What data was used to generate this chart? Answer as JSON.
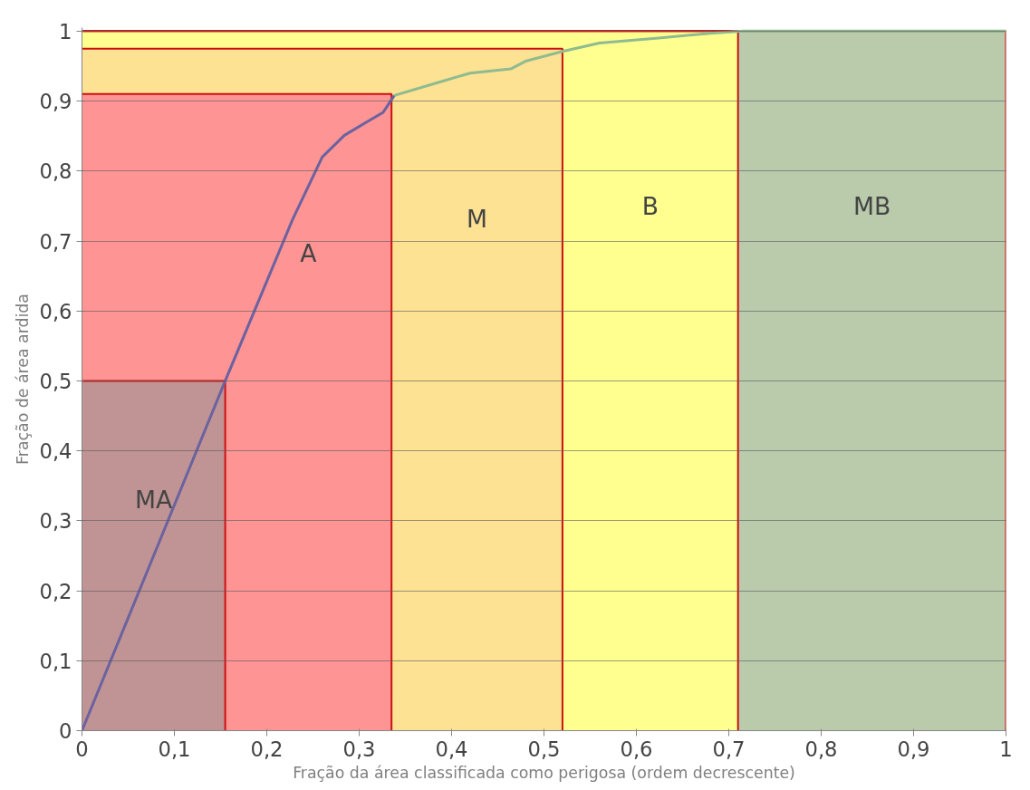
{
  "chart_data": {
    "type": "area",
    "stacked": true,
    "xlabel": "Fração da área classificada como perigosa (ordem decrescente)",
    "ylabel": "Fração de área ardida",
    "xlim": [
      0,
      1
    ],
    "ylim": [
      0,
      1.005
    ],
    "xticks": [
      0,
      {
        "value": 0.1,
        "label": "0,1"
      },
      {
        "value": 0.2,
        "label": "0,2"
      },
      {
        "value": 0.3,
        "label": "0,3"
      },
      {
        "value": 0.4,
        "label": "0,4"
      },
      {
        "value": 0.5,
        "label": "0,5"
      },
      {
        "value": 0.6,
        "label": "0,6"
      },
      {
        "value": 0.7,
        "label": "0,7"
      },
      {
        "value": 0.8,
        "label": "0,8"
      },
      {
        "value": 0.9,
        "label": "0,9"
      },
      1
    ],
    "yticks": [
      0,
      {
        "value": 0.1,
        "label": "0,1"
      },
      {
        "value": 0.2,
        "label": "0,2"
      },
      {
        "value": 0.3,
        "label": "0,3"
      },
      {
        "value": 0.4,
        "label": "0,4"
      },
      {
        "value": 0.5,
        "label": "0,5"
      },
      {
        "value": 0.6,
        "label": "0,6"
      },
      {
        "value": 0.7,
        "label": "0,7"
      },
      {
        "value": 0.8,
        "label": "0,8"
      },
      {
        "value": 0.9,
        "label": "0,9"
      },
      1
    ],
    "grid": "y",
    "x": [
      0,
      0.155,
      0.155,
      0.335,
      0.335,
      0.52,
      0.52,
      0.71,
      0.71,
      1
    ],
    "series": [
      {
        "name": "MA",
        "color": "#c09494",
        "values": [
          0.5,
          0.5,
          null,
          null,
          null,
          null,
          null,
          null,
          null,
          null
        ]
      },
      {
        "name": "A",
        "color": "#fe9494",
        "values": [
          0.41,
          0.41,
          0.91,
          0.91,
          null,
          null,
          null,
          null,
          null,
          null
        ]
      },
      {
        "name": "M",
        "color": "#fde293",
        "values": [
          0.065,
          0.065,
          0.065,
          0.065,
          0.975,
          0.975,
          null,
          null,
          null,
          null
        ]
      },
      {
        "name": "B",
        "color": "#ffff90",
        "values": [
          0.025,
          0.025,
          0.025,
          0.025,
          0.025,
          0.025,
          1,
          1,
          null,
          null
        ]
      },
      {
        "name": "MB",
        "color": "#b9cbab",
        "values": [
          null,
          null,
          null,
          null,
          null,
          null,
          null,
          null,
          1,
          1
        ]
      },
      {
        "type": "line",
        "color": "#6b62a0",
        "x": [
          0,
          0.155,
          0.228,
          0.26,
          0.284,
          0.308,
          0.326,
          0.338
        ],
        "values": [
          0,
          0.5,
          0.731,
          0.82,
          0.851,
          0.87,
          0.884,
          0.908
        ]
      },
      {
        "type": "line",
        "color": "#8fbb8f",
        "x": [
          0.338,
          0.384,
          0.42,
          0.464,
          0.48,
          0.52,
          0.56,
          0.624,
          0.68,
          0.716,
          1
        ],
        "values": [
          0.908,
          0.926,
          0.94,
          0.946,
          0.957,
          0.971,
          0.983,
          0.99,
          0.997,
          1,
          1
        ]
      }
    ]
  }
}
